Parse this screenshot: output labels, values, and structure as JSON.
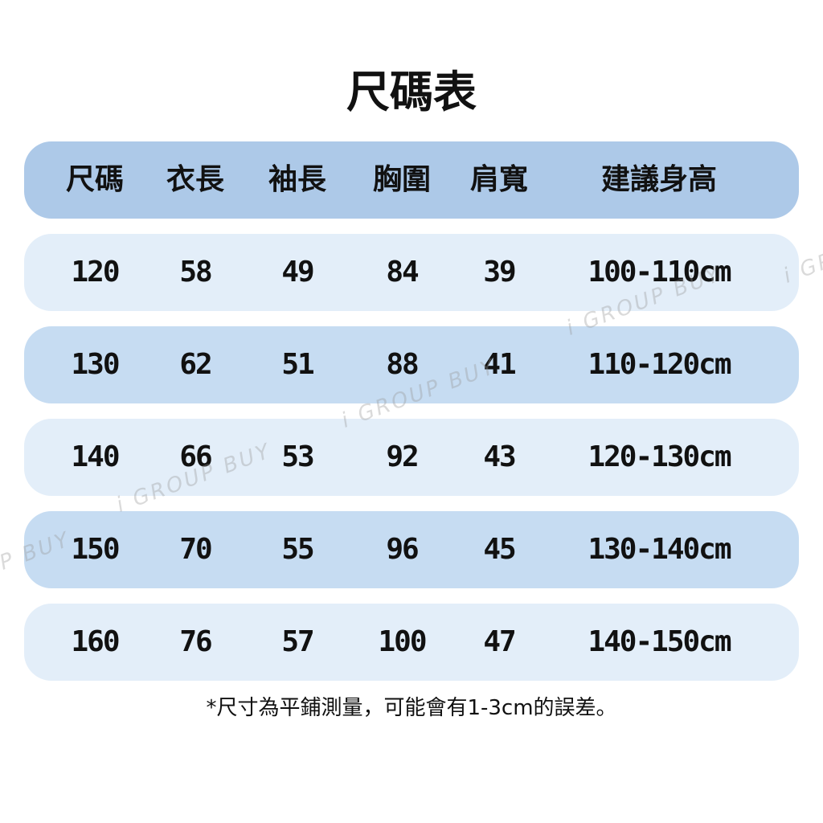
{
  "title": "尺碼表",
  "headers": [
    "尺碼",
    "衣長",
    "袖長",
    "胸圍",
    "肩寬",
    "建議身高"
  ],
  "rows": [
    [
      "120",
      "58",
      "49",
      "84",
      "39",
      "100-110cm"
    ],
    [
      "130",
      "62",
      "51",
      "88",
      "41",
      "110-120cm"
    ],
    [
      "140",
      "66",
      "53",
      "92",
      "43",
      "120-130cm"
    ],
    [
      "150",
      "70",
      "55",
      "96",
      "45",
      "130-140cm"
    ],
    [
      "160",
      "76",
      "57",
      "100",
      "47",
      "140-150cm"
    ]
  ],
  "note": "*尺寸為平鋪測量，可能會有1-3cm的誤差。",
  "watermark": "i GROUP BUY",
  "colors": {
    "header": "#adc9e8",
    "row_light": "#e3eef9",
    "row_dark": "#c6dcf2"
  }
}
